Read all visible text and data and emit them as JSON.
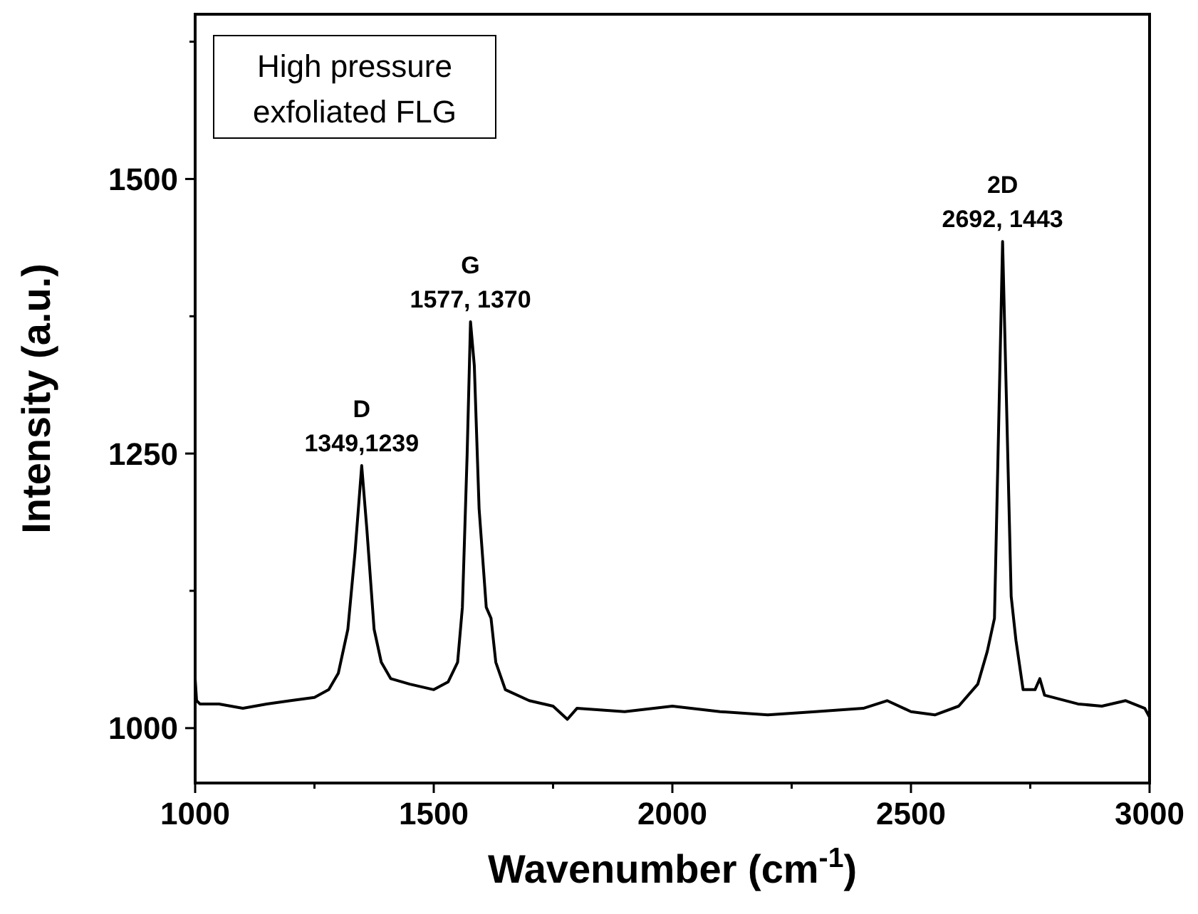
{
  "chart_data": {
    "type": "line",
    "xlabel": "Wavenumber (cm$^{-1}$)",
    "ylabel": "Intensity (a.u.)",
    "xlim": [
      1000,
      3000
    ],
    "ylim": [
      950,
      1650
    ],
    "xticks": [
      1000,
      {
        "value": 1250,
        "label": null
      },
      1500,
      {
        "value": 1750,
        "label": null
      },
      2000,
      {
        "value": 2250,
        "label": null
      },
      2500,
      {
        "value": 2750,
        "label": null
      },
      3000
    ],
    "yticks": [
      {
        "value": 1125,
        "label": null
      },
      1000,
      1250,
      {
        "value": 1375,
        "label": null
      },
      1500,
      {
        "value": 1625,
        "label": null
      }
    ],
    "grid": false,
    "line_style": "solid",
    "annotations": [
      "High pressure\nexfoliated FLG",
      {
        "text": "D\n1349,1239",
        "x": 1349,
        "y": 1239
      },
      {
        "text": "G\n1577, 1370",
        "x": 1577,
        "y": 1370
      },
      {
        "text": "2D\n2692, 1443",
        "x": 2692,
        "y": 1443
      }
    ],
    "series": [
      {
        "color": "#000000",
        "x": [
          1000,
          1003,
          1010,
          1050,
          1100,
          1150,
          1200,
          1250,
          1280,
          1300,
          1320,
          1335,
          1349,
          1360,
          1375,
          1390,
          1410,
          1450,
          1500,
          1530,
          1550,
          1560,
          1570,
          1577,
          1585,
          1595,
          1610,
          1620,
          1630,
          1650,
          1700,
          1750,
          1780,
          1800,
          1900,
          2000,
          2100,
          2200,
          2300,
          2400,
          2450,
          2500,
          2550,
          2600,
          2640,
          2660,
          2675,
          2685,
          2692,
          2700,
          2710,
          2720,
          2735,
          2760,
          2770,
          2780,
          2850,
          2900,
          2950,
          2990,
          3000
        ],
        "values": [
          1045,
          1025,
          1022,
          1022,
          1018,
          1022,
          1025,
          1028,
          1035,
          1050,
          1090,
          1160,
          1239,
          1180,
          1090,
          1060,
          1045,
          1040,
          1035,
          1042,
          1060,
          1110,
          1250,
          1370,
          1330,
          1200,
          1110,
          1100,
          1060,
          1035,
          1025,
          1020,
          1008,
          1018,
          1015,
          1020,
          1015,
          1012,
          1015,
          1018,
          1025,
          1015,
          1012,
          1020,
          1040,
          1070,
          1100,
          1300,
          1443,
          1300,
          1120,
          1080,
          1035,
          1035,
          1045,
          1030,
          1022,
          1020,
          1025,
          1018,
          1010
        ]
      }
    ]
  }
}
